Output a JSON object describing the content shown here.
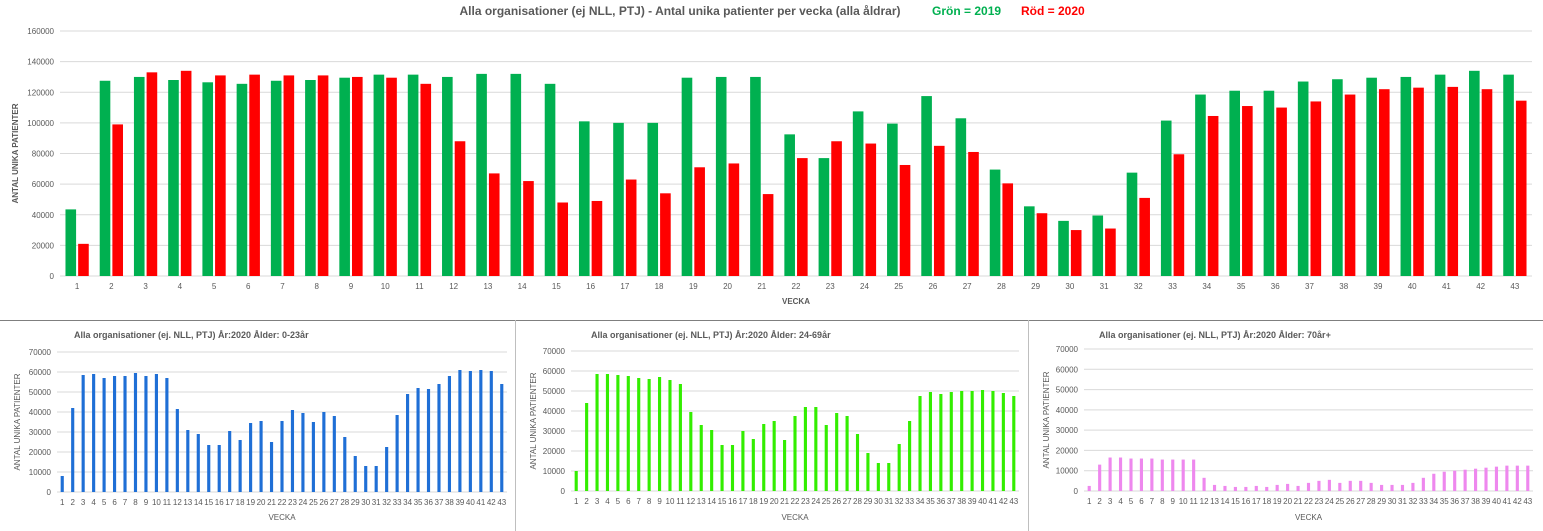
{
  "main_chart": {
    "title_part1": "Alla organisationer (ej NLL,  PTJ)   -   Antal unika patienter per vecka (alla åldrar)",
    "legend_green": "Grön = 2019",
    "legend_red": "Röd = 2020",
    "legend_green_color": "#00b050",
    "legend_red_color": "#ff0000"
  },
  "chart_data": [
    {
      "type": "bar",
      "title": "Alla organisationer (ej NLL,  PTJ)   -   Antal unika patienter per vecka (alla åldrar)",
      "xlabel": "VECKA",
      "ylabel": "ANTAL UNIKA PATIENTER",
      "ylim": [
        0,
        160000
      ],
      "yticks": [
        0,
        20000,
        40000,
        60000,
        80000,
        100000,
        120000,
        140000,
        160000
      ],
      "grid": true,
      "categories": [
        "1",
        "2",
        "3",
        "4",
        "5",
        "6",
        "7",
        "8",
        "9",
        "10",
        "11",
        "12",
        "13",
        "14",
        "15",
        "16",
        "17",
        "18",
        "19",
        "20",
        "21",
        "22",
        "23",
        "24",
        "25",
        "26",
        "27",
        "28",
        "29",
        "30",
        "31",
        "32",
        "33",
        "34",
        "35",
        "36",
        "37",
        "38",
        "39",
        "40",
        "41",
        "42",
        "43"
      ],
      "series": [
        {
          "name": "Grön = 2019",
          "color": "#00b050",
          "values": [
            43500,
            127500,
            130000,
            128000,
            126500,
            125500,
            127500,
            128000,
            129500,
            131500,
            131500,
            130000,
            132000,
            132000,
            125500,
            101000,
            100000,
            100000,
            129500,
            130000,
            130000,
            92500,
            77000,
            107500,
            99500,
            117500,
            103000,
            69500,
            45500,
            36000,
            39500,
            67500,
            101500,
            118500,
            121000,
            121000,
            127000,
            128500,
            129500,
            130000,
            131500,
            134000,
            131500
          ]
        },
        {
          "name": "Röd = 2020",
          "color": "#ff0000",
          "values": [
            21000,
            99000,
            133000,
            134000,
            131000,
            131500,
            131000,
            131000,
            130000,
            129500,
            125500,
            88000,
            67000,
            62000,
            48000,
            49000,
            63000,
            54000,
            71000,
            73500,
            53500,
            77000,
            88000,
            86500,
            72500,
            85000,
            81000,
            60500,
            41000,
            30000,
            31000,
            51000,
            79500,
            104500,
            111000,
            110000,
            114000,
            118500,
            122000,
            123000,
            123500,
            122000,
            114500
          ]
        }
      ]
    },
    {
      "type": "bar",
      "title": "Alla organisationer (ej. NLL, PTJ)  År:2020   Ålder: 0-23år",
      "xlabel": "VECKA",
      "ylabel": "ANTAL UNIKA PATIENTER",
      "ylim": [
        0,
        70000
      ],
      "yticks": [
        0,
        10000,
        20000,
        30000,
        40000,
        50000,
        60000,
        70000
      ],
      "grid": true,
      "categories": [
        "1",
        "2",
        "3",
        "4",
        "5",
        "6",
        "7",
        "8",
        "9",
        "10",
        "11",
        "12",
        "13",
        "14",
        "15",
        "16",
        "17",
        "18",
        "19",
        "20",
        "21",
        "22",
        "23",
        "24",
        "25",
        "26",
        "27",
        "28",
        "29",
        "30",
        "31",
        "32",
        "33",
        "34",
        "35",
        "36",
        "37",
        "38",
        "39",
        "40",
        "41",
        "42",
        "43"
      ],
      "series": [
        {
          "color": "#1f6fd6",
          "values": [
            8000,
            42000,
            58500,
            59000,
            57000,
            58000,
            58000,
            59500,
            58000,
            59000,
            57000,
            41500,
            31000,
            29000,
            23500,
            23500,
            30500,
            26000,
            34500,
            35500,
            25000,
            35500,
            41000,
            39500,
            35000,
            40000,
            38000,
            27500,
            18000,
            13000,
            13000,
            22500,
            38500,
            49000,
            52000,
            51500,
            54000,
            58000,
            61000,
            60500,
            61000,
            60500,
            54000
          ]
        }
      ]
    },
    {
      "type": "bar",
      "title": "Alla organisationer (ej. NLL, PTJ)  År:2020   Ålder: 24-69år",
      "xlabel": "VECKA",
      "ylabel": "ANTAL UNIKA PATIENTER",
      "ylim": [
        0,
        70000
      ],
      "yticks": [
        0,
        10000,
        20000,
        30000,
        40000,
        50000,
        60000,
        70000
      ],
      "grid": true,
      "categories": [
        "1",
        "2",
        "3",
        "4",
        "5",
        "6",
        "7",
        "8",
        "9",
        "10",
        "11",
        "12",
        "13",
        "14",
        "15",
        "16",
        "17",
        "18",
        "19",
        "20",
        "21",
        "22",
        "23",
        "24",
        "25",
        "26",
        "27",
        "28",
        "29",
        "30",
        "31",
        "32",
        "33",
        "34",
        "35",
        "36",
        "37",
        "38",
        "39",
        "40",
        "41",
        "42",
        "43"
      ],
      "series": [
        {
          "color": "#33ee00",
          "values": [
            10000,
            44000,
            58500,
            58500,
            58000,
            57500,
            56500,
            56000,
            57000,
            55500,
            53500,
            39500,
            33000,
            30500,
            23000,
            23000,
            30000,
            26000,
            33500,
            35000,
            25500,
            37500,
            42000,
            42000,
            33000,
            39000,
            37500,
            28500,
            19000,
            14000,
            14000,
            23500,
            35000,
            47500,
            49500,
            48500,
            49500,
            50000,
            50000,
            50500,
            50000,
            49000,
            47500
          ]
        }
      ]
    },
    {
      "type": "bar",
      "title": "Alla organisationer (ej. NLL, PTJ)  År:2020   Ålder: 70år+",
      "xlabel": "VECKA",
      "ylabel": "ANTAL UNIKA PATIENTER",
      "ylim": [
        0,
        70000
      ],
      "yticks": [
        0,
        10000,
        20000,
        30000,
        40000,
        50000,
        60000,
        70000
      ],
      "grid": true,
      "categories": [
        "1",
        "2",
        "3",
        "4",
        "5",
        "6",
        "7",
        "8",
        "9",
        "10",
        "11",
        "12",
        "13",
        "14",
        "15",
        "16",
        "17",
        "18",
        "19",
        "20",
        "21",
        "22",
        "23",
        "24",
        "25",
        "26",
        "27",
        "28",
        "29",
        "30",
        "31",
        "32",
        "33",
        "34",
        "35",
        "36",
        "37",
        "38",
        "39",
        "40",
        "41",
        "42",
        "43"
      ],
      "series": [
        {
          "color": "#ee88ee",
          "values": [
            2500,
            13000,
            16500,
            16500,
            16000,
            16000,
            16000,
            15500,
            15500,
            15500,
            15500,
            6500,
            3000,
            2500,
            2000,
            2000,
            2500,
            2000,
            3000,
            3500,
            2500,
            4000,
            5000,
            5500,
            4000,
            5000,
            5000,
            4000,
            3000,
            3000,
            3000,
            4000,
            6500,
            8500,
            9500,
            10000,
            10500,
            11000,
            11500,
            12000,
            12500,
            12500,
            12500
          ]
        }
      ]
    }
  ]
}
